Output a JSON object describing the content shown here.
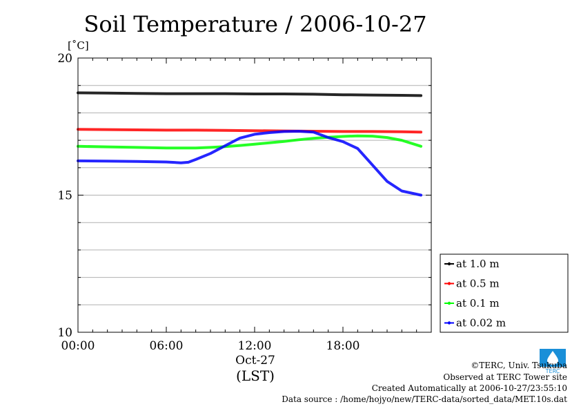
{
  "chart_data": {
    "type": "line",
    "title": "Soil Temperature / 2006-10-27",
    "ylabel_unit": "[˚C]",
    "ylim": [
      10,
      20
    ],
    "y_ticks": [
      10,
      15,
      20
    ],
    "y_tick_labels": [
      "10",
      "15",
      "20"
    ],
    "y_gridlines": [
      11,
      12,
      13,
      14,
      15,
      16,
      17,
      18,
      19
    ],
    "xlim": [
      0,
      24
    ],
    "x_ticks": [
      0,
      6,
      12,
      18
    ],
    "x_tick_labels": [
      "00:00",
      "06:00",
      "12:00",
      "18:00"
    ],
    "x_date_label": "Oct-27",
    "x_timezone_label": "(LST)",
    "grid": true,
    "legend_position": "right",
    "series": [
      {
        "name": "at 1.0 m",
        "color": "#000000",
        "x": [
          0,
          2,
          4,
          6,
          8,
          10,
          12,
          14,
          16,
          18,
          20,
          22,
          23.3
        ],
        "y": [
          18.73,
          18.72,
          18.71,
          18.7,
          18.7,
          18.7,
          18.69,
          18.69,
          18.68,
          18.66,
          18.65,
          18.64,
          18.63
        ]
      },
      {
        "name": "at 0.5 m",
        "color": "#ff0000",
        "x": [
          0,
          2,
          4,
          6,
          8,
          10,
          12,
          14,
          16,
          18,
          20,
          22,
          23.3
        ],
        "y": [
          17.4,
          17.39,
          17.38,
          17.37,
          17.37,
          17.36,
          17.35,
          17.34,
          17.33,
          17.32,
          17.32,
          17.31,
          17.3
        ]
      },
      {
        "name": "at 0.1 m",
        "color": "#00ff00",
        "x": [
          0,
          2,
          4,
          6,
          8,
          9,
          10,
          11,
          12,
          13,
          14,
          15,
          16,
          17,
          18,
          19,
          20,
          21,
          22,
          23.3
        ],
        "y": [
          16.78,
          16.76,
          16.74,
          16.72,
          16.72,
          16.74,
          16.77,
          16.81,
          16.86,
          16.91,
          16.96,
          17.02,
          17.07,
          17.11,
          17.14,
          17.16,
          17.15,
          17.1,
          17.0,
          16.78
        ]
      },
      {
        "name": "at 0.02 m",
        "color": "#0000ff",
        "x": [
          0,
          2,
          4,
          5,
          6,
          7,
          7.5,
          8,
          9,
          10,
          11,
          12,
          13,
          14,
          15,
          16,
          17,
          18,
          19,
          20,
          21,
          22,
          23.3
        ],
        "y": [
          16.25,
          16.24,
          16.23,
          16.22,
          16.21,
          16.18,
          16.2,
          16.3,
          16.52,
          16.8,
          17.08,
          17.22,
          17.28,
          17.32,
          17.33,
          17.3,
          17.1,
          16.95,
          16.7,
          16.1,
          15.5,
          15.15,
          15.0
        ]
      }
    ]
  },
  "credits": {
    "copyright": "©TERC, Univ. Tsukuba",
    "observed": "Observed at TERC Tower site",
    "created": "Created Automatically at 2006-10-27/23:55:10",
    "source": "Data source : /home/hojyo/new/TERC-data/sorted_data/MET.10s.dat",
    "logo_text": "TERC",
    "logo_color": "#1a8fd8"
  }
}
